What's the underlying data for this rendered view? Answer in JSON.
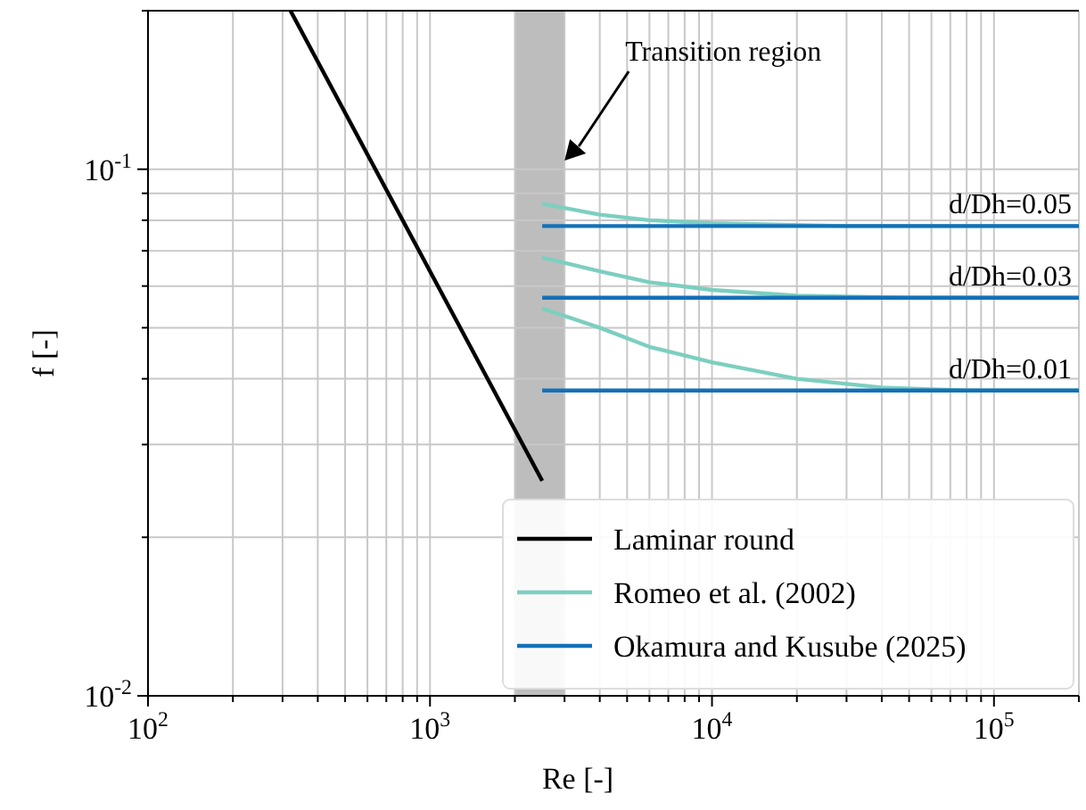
{
  "chart_data": {
    "type": "line",
    "xlabel": "Re [-]",
    "ylabel": "f [-]",
    "log": "xy",
    "grid": true,
    "legend": "bottom right",
    "line_style": "solid",
    "xlim": [
      100,
      200000
    ],
    "ylim": [
      0.01,
      0.2
    ],
    "xticks": [
      {
        "value": 100,
        "label": "10$^{2}$"
      },
      {
        "value": 200,
        "label": null
      },
      {
        "value": 300,
        "label": null
      },
      {
        "value": 400,
        "label": null
      },
      {
        "value": 500,
        "label": null
      },
      {
        "value": 600,
        "label": null
      },
      {
        "value": 700,
        "label": null
      },
      {
        "value": 800,
        "label": null
      },
      {
        "value": 900,
        "label": null
      },
      {
        "value": 1000,
        "label": "10$^{3}$"
      },
      {
        "value": 2000,
        "label": null
      },
      {
        "value": 3000,
        "label": null
      },
      {
        "value": 4000,
        "label": null
      },
      {
        "value": 5000,
        "label": null
      },
      {
        "value": 6000,
        "label": null
      },
      {
        "value": 7000,
        "label": null
      },
      {
        "value": 8000,
        "label": null
      },
      {
        "value": 9000,
        "label": null
      },
      {
        "value": 10000,
        "label": "10$^{4}$"
      },
      {
        "value": 20000,
        "label": null
      },
      {
        "value": 30000,
        "label": null
      },
      {
        "value": 40000,
        "label": null
      },
      {
        "value": 50000,
        "label": null
      },
      {
        "value": 60000,
        "label": null
      },
      {
        "value": 70000,
        "label": null
      },
      {
        "value": 80000,
        "label": null
      },
      {
        "value": 90000,
        "label": null
      },
      {
        "value": 100000,
        "label": "10$^{5}$"
      },
      {
        "value": 200000,
        "label": null
      }
    ],
    "yticks": [
      {
        "value": 0.01,
        "label": "10$^{-2}$"
      },
      {
        "value": 0.02,
        "label": null
      },
      {
        "value": 0.03,
        "label": null
      },
      {
        "value": 0.04,
        "label": null
      },
      {
        "value": 0.05,
        "label": null
      },
      {
        "value": 0.06,
        "label": null
      },
      {
        "value": 0.07,
        "label": null
      },
      {
        "value": 0.08,
        "label": null
      },
      {
        "value": 0.09,
        "label": null
      },
      {
        "value": 0.1,
        "label": "10$^{-1}$"
      },
      {
        "value": 0.2,
        "label": null
      }
    ],
    "bands": [
      {
        "axis": "x",
        "from": 2000,
        "to": 3000,
        "color": "#bdbdbd"
      }
    ],
    "annotations": [
      "Transition region",
      "d/Dh=0.05",
      "d/Dh=0.03",
      "d/Dh=0.01"
    ],
    "series": [
      {
        "name": "Laminar round",
        "color": "#000000",
        "x": [
          320,
          2500
        ],
        "values": [
          0.2,
          0.0256
        ]
      },
      {
        "name": "Romeo et al. (2002)",
        "color": "#7ccfc0",
        "x": [
          2500,
          4000,
          6000,
          10000,
          30000,
          200000
        ],
        "values": [
          0.086,
          0.082,
          0.08,
          0.079,
          0.078,
          0.078
        ]
      },
      {
        "color": "#7ccfc0",
        "x": [
          2500,
          4000,
          6000,
          10000,
          20000,
          50000,
          200000
        ],
        "values": [
          0.068,
          0.064,
          0.061,
          0.059,
          0.0575,
          0.057,
          0.057
        ]
      },
      {
        "color": "#7ccfc0",
        "x": [
          2500,
          4000,
          6000,
          10000,
          20000,
          40000,
          80000,
          200000
        ],
        "values": [
          0.0544,
          0.05,
          0.046,
          0.043,
          0.04,
          0.0385,
          0.038,
          0.038
        ]
      },
      {
        "name": "Okamura and Kusube (2025)",
        "color": "#1470b8",
        "x": [
          2500,
          200000
        ],
        "values": [
          0.078,
          0.078
        ]
      },
      {
        "color": "#1470b8",
        "x": [
          2500,
          200000
        ],
        "values": [
          0.057,
          0.057
        ]
      },
      {
        "color": "#1470b8",
        "x": [
          2500,
          200000
        ],
        "values": [
          0.038,
          0.038
        ]
      }
    ]
  }
}
